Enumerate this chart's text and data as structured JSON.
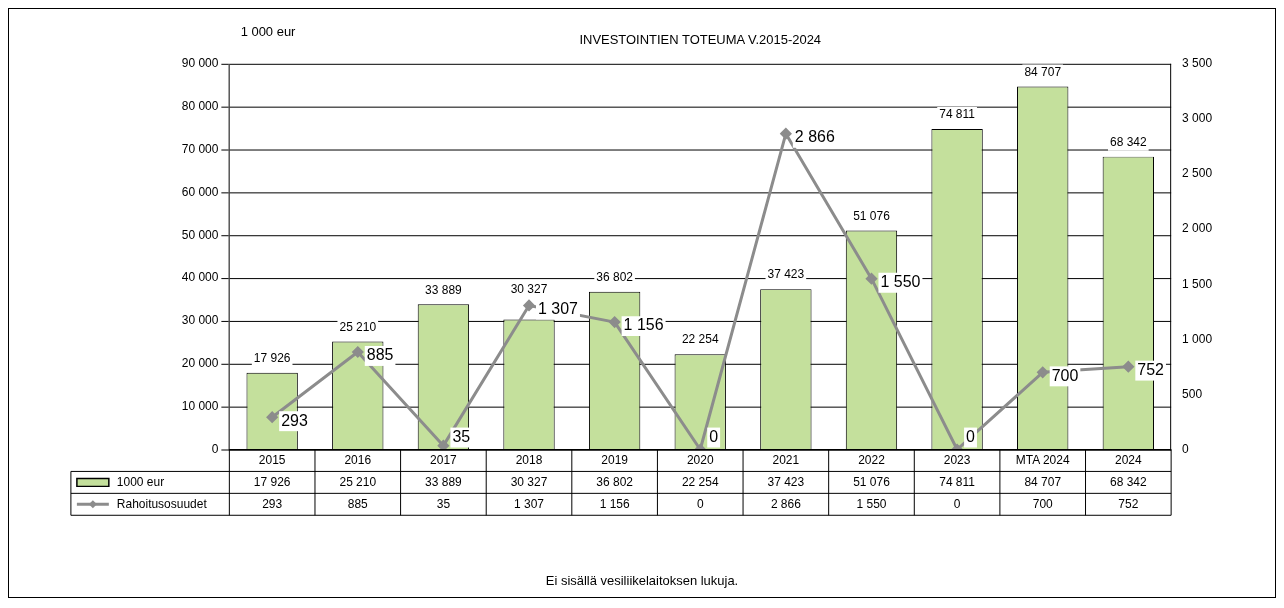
{
  "chart_data": {
    "type": "bar",
    "title": "INVESTOINTIEN TOTEUMA V.2015-2024",
    "ylabel": "1 000 eur",
    "categories": [
      "2015",
      "2016",
      "2017",
      "2018",
      "2019",
      "2020",
      "2021",
      "2022",
      "2023",
      "MTA 2024",
      "2024"
    ],
    "series": [
      {
        "name": "1000 eur",
        "color": "#c4e09c",
        "values": [
          17926,
          25210,
          33889,
          30327,
          36802,
          22254,
          37423,
          51076,
          74811,
          84707,
          68342
        ],
        "value_labels": [
          "17 926",
          "25 210",
          "33 889",
          "30 327",
          "36 802",
          "22 254",
          "37 423",
          "51 076",
          "74 811",
          "84 707",
          "68 342"
        ]
      },
      {
        "name": "Rahoitusosuudet",
        "type": "line",
        "axis": "y2",
        "color": "#8c8c8c",
        "marker": "diamond",
        "values": [
          293,
          885,
          35,
          1307,
          1156,
          0,
          2866,
          1550,
          0,
          700,
          752
        ],
        "value_labels": [
          "293",
          "885",
          "35",
          "1 307",
          "1 156",
          "0",
          "2 866",
          "1 550",
          "0",
          "700",
          "752"
        ]
      }
    ],
    "ylim": [
      0,
      90000
    ],
    "yticks": [
      {
        "value": 0,
        "label": "0"
      },
      {
        "value": 10000,
        "label": "10 000"
      },
      {
        "value": 20000,
        "label": "20 000"
      },
      {
        "value": 30000,
        "label": "30 000"
      },
      {
        "value": 40000,
        "label": "40 000"
      },
      {
        "value": 50000,
        "label": "50 000"
      },
      {
        "value": 60000,
        "label": "60 000"
      },
      {
        "value": 70000,
        "label": "70 000"
      },
      {
        "value": 80000,
        "label": "80 000"
      },
      {
        "value": 90000,
        "label": "90 000"
      }
    ],
    "y2lim": [
      0,
      3500
    ],
    "y2ticks": [
      {
        "value": 0,
        "label": "0"
      },
      {
        "value": 500,
        "label": "500"
      },
      {
        "value": 1000,
        "label": "1 000"
      },
      {
        "value": 1500,
        "label": "1 500"
      },
      {
        "value": 2000,
        "label": "2 000"
      },
      {
        "value": 2500,
        "label": "2 500"
      },
      {
        "value": 3000,
        "label": "3 000"
      },
      {
        "value": 3500,
        "label": "3 500"
      }
    ],
    "grid": "y",
    "legend": "bottom",
    "annotations": [
      "Ei sisällä vesiliikelaitoksen lukuja."
    ]
  }
}
